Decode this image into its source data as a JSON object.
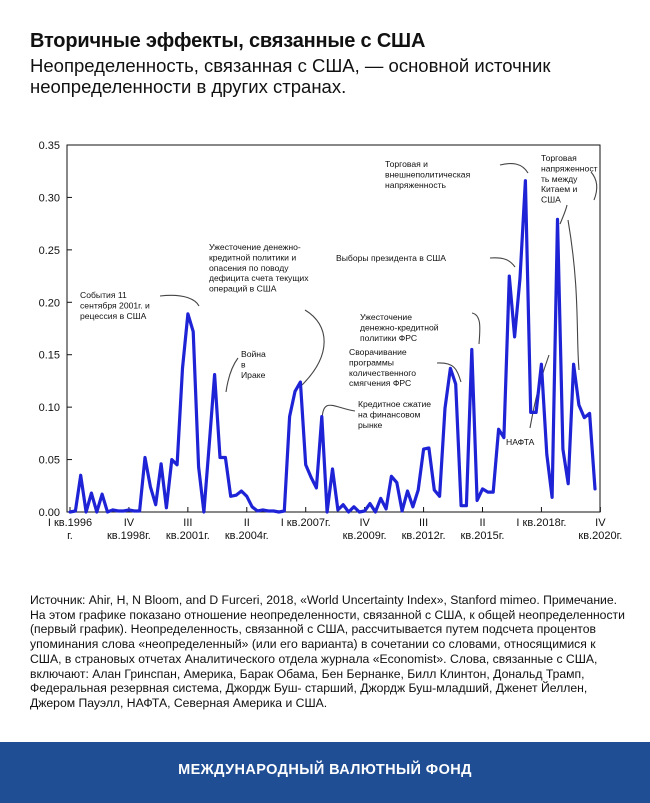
{
  "header": {
    "title": "Вторичные эффекты, связанные с США",
    "subtitle": "Неопределенность, связанная с США, — основной источник неопределенности в других странах."
  },
  "chart_data": {
    "type": "line",
    "ylim": [
      0,
      0.35
    ],
    "yticks": [
      "0.00",
      "0.05",
      "0.10",
      "0.15",
      "0.20",
      "0.25",
      "0.30",
      "0.35"
    ],
    "xticks": [
      {
        "q": 0,
        "lines": [
          "I кв.1996",
          "г."
        ]
      },
      {
        "q": 11,
        "lines": [
          "IV",
          "кв.1998г."
        ]
      },
      {
        "q": 22,
        "lines": [
          "III",
          "кв.2001г."
        ]
      },
      {
        "q": 33,
        "lines": [
          "II",
          "кв.2004г."
        ]
      },
      {
        "q": 44,
        "lines": [
          "I кв.2007г."
        ]
      },
      {
        "q": 55,
        "lines": [
          "IV",
          "кв.2009г."
        ]
      },
      {
        "q": 66,
        "lines": [
          "III",
          "кв.2012г."
        ]
      },
      {
        "q": 77,
        "lines": [
          "II",
          "кв.2015г."
        ]
      },
      {
        "q": 88,
        "lines": [
          "I кв.2018г."
        ]
      },
      {
        "q": 99,
        "lines": [
          "IV",
          "кв.2020г."
        ]
      }
    ],
    "series": [
      {
        "color": "#1f23d6",
        "values": [
          0.0,
          0.001,
          0.035,
          0.0,
          0.018,
          0.0,
          0.017,
          0.0,
          0.002,
          0.001,
          0.001,
          0.002,
          0.001,
          0.001,
          0.052,
          0.024,
          0.007,
          0.046,
          0.004,
          0.05,
          0.045,
          0.137,
          0.189,
          0.172,
          0.043,
          0.0,
          0.065,
          0.131,
          0.052,
          0.052,
          0.015,
          0.016,
          0.02,
          0.015,
          0.005,
          0.001,
          0.002,
          0.001,
          0.001,
          0.0,
          0.001,
          0.091,
          0.115,
          0.124,
          0.045,
          0.033,
          0.023,
          0.091,
          0.0,
          0.041,
          0.002,
          0.007,
          0.0,
          0.005,
          0.0,
          0.001,
          0.008,
          0.0,
          0.013,
          0.003,
          0.034,
          0.028,
          0.001,
          0.02,
          0.005,
          0.021,
          0.06,
          0.061,
          0.021,
          0.015,
          0.099,
          0.137,
          0.122,
          0.006,
          0.006,
          0.155,
          0.011,
          0.022,
          0.019,
          0.019,
          0.079,
          0.071,
          0.225,
          0.167,
          0.223,
          0.316,
          0.095,
          0.095,
          0.141,
          0.055,
          0.014,
          0.279,
          0.06,
          0.027,
          0.141,
          0.102,
          0.09,
          0.094,
          0.022
        ]
      }
    ],
    "annotations": [
      {
        "lines": [
          "События 11",
          "сентября 2001г. и",
          "рецессия в США"
        ]
      },
      {
        "lines": [
          "Война",
          "в",
          "Ираке"
        ]
      },
      {
        "lines": [
          "Ужесточение денежно-",
          "кредитной политики и",
          "опасения по поводу",
          "дефицита счета текущих",
          "операций в США"
        ]
      },
      {
        "lines": [
          "Кредитное сжатие",
          "на финансовом",
          "рынке"
        ]
      },
      {
        "lines": [
          "Выборы президента в США"
        ]
      },
      {
        "lines": [
          "Ужесточение",
          "денежно-кредитной",
          "политики ФРС"
        ]
      },
      {
        "lines": [
          "Сворачивание",
          "программы",
          "количественного",
          "смягчения ФРС"
        ]
      },
      {
        "lines": [
          "Торговая и",
          "внешнеполитическая",
          "напряженность"
        ]
      },
      {
        "lines": [
          "Торговая",
          "напряженност",
          "ть между",
          "Китаем и",
          "США"
        ]
      },
      {
        "lines": [
          "НАФТА"
        ]
      }
    ]
  },
  "source": {
    "text": "Источник: Ahir, H, N Bloom, and D Furceri, 2018, «World Uncertainty Index», Stanford mimeo. Примечание. На этом графике показано отношение неопределенности, связанной с США, к общей неопределенности (первый график). Неопределенность, связанной с США, рассчитывается путем подсчета процентов упоминания слова «неопределенный» (или его варианта) в сочетании со словами, относящимися к США, в страновых отчетах Аналитического отдела журнала «Economist». Слова, связанные с США, включают: Алан Гринспан, Америка, Барак Обама, Бен Бернанке, Билл Клинтон, Дональд Трамп, Федеральная резервная система, Джордж Буш- старший, Джордж Буш-младший, Дженет Йеллен, Джером Пауэлл, НАФТА, Северная Америка и США."
  },
  "footer": {
    "label": "МЕЖДУНАРОДНЫЙ ВАЛЮТНЫЙ ФОНД"
  }
}
